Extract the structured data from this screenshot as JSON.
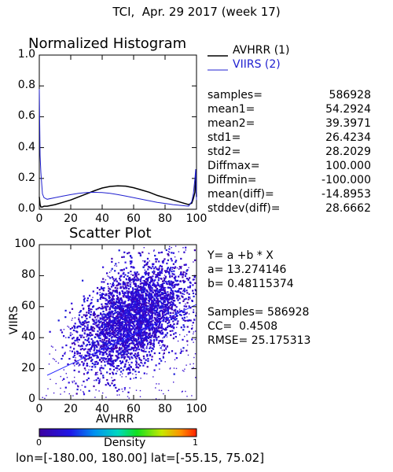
{
  "header": {
    "title": "TCI,  Apr. 29 2017 (week 17)"
  },
  "histogram": {
    "title": "Normalized Histogram",
    "legend": [
      {
        "label": "AVHRR (1)",
        "color": "#000000"
      },
      {
        "label": "VIIRS (2)",
        "color": "#2020d0"
      }
    ]
  },
  "stats": [
    {
      "label": "samples=",
      "value": "586928"
    },
    {
      "label": "mean1=",
      "value": "54.2924"
    },
    {
      "label": "mean2=",
      "value": "39.3971"
    },
    {
      "label": "std1=",
      "value": "26.4234"
    },
    {
      "label": "std2=",
      "value": "28.2029"
    },
    {
      "label": "Diffmax=",
      "value": "100.000"
    },
    {
      "label": "Diffmin=",
      "value": "-100.000"
    },
    {
      "label": "mean(diff)=",
      "value": "-14.8953"
    },
    {
      "label": "stddev(diff)=",
      "value": "28.6662"
    }
  ],
  "scatter": {
    "title": "Scatter Plot",
    "equation": "Y= a +b * X",
    "a_text": "a= 13.274146",
    "b_text": "b= 0.48115374",
    "samples_text": "Samples= 586928",
    "cc_text": "CC=  0.4508",
    "rmse_text": "RMSE= 25.175313"
  },
  "colorbar": {
    "label": "Density",
    "min_label": "0",
    "max_label": "1"
  },
  "footer": {
    "text": "lon=[-180.00, 180.00] lat=[-55.15, 75.02]"
  },
  "chart_data": [
    {
      "type": "line",
      "title": "Normalized Histogram",
      "xlim": [
        0,
        100
      ],
      "ylim": [
        0,
        1
      ],
      "x_ticks": [
        "0",
        "20",
        "40",
        "60",
        "80",
        "100"
      ],
      "y_ticks": [
        "0.0",
        "0.2",
        "0.4",
        "0.6",
        "0.8",
        "1.0"
      ],
      "x": [
        0,
        0.5,
        1,
        2,
        3,
        5,
        10,
        15,
        20,
        25,
        30,
        35,
        40,
        45,
        50,
        55,
        60,
        65,
        70,
        75,
        80,
        85,
        90,
        95,
        97,
        98,
        99,
        99.5,
        100
      ],
      "series": [
        {
          "name": "AVHRR (1)",
          "color": "#000000",
          "values": [
            0.08,
            0.03,
            0.015,
            0.015,
            0.02,
            0.02,
            0.03,
            0.045,
            0.06,
            0.08,
            0.1,
            0.12,
            0.138,
            0.148,
            0.152,
            0.15,
            0.14,
            0.125,
            0.11,
            0.09,
            0.075,
            0.06,
            0.045,
            0.03,
            0.04,
            0.07,
            0.11,
            0.22,
            0.08
          ]
        },
        {
          "name": "VIIRS (2)",
          "color": "#2020d0",
          "values": [
            0.78,
            0.35,
            0.24,
            0.1,
            0.075,
            0.065,
            0.075,
            0.085,
            0.095,
            0.103,
            0.108,
            0.11,
            0.108,
            0.103,
            0.095,
            0.085,
            0.075,
            0.065,
            0.055,
            0.045,
            0.038,
            0.03,
            0.025,
            0.02,
            0.05,
            0.1,
            0.2,
            0.26,
            0.06
          ]
        }
      ]
    },
    {
      "type": "scatter",
      "title": "Scatter Plot",
      "xlabel": "AVHRR",
      "ylabel": "VIIRS",
      "xlim": [
        0,
        100
      ],
      "ylim": [
        0,
        100
      ],
      "x_ticks": [
        "0",
        "20",
        "40",
        "60",
        "80",
        "100"
      ],
      "y_ticks": [
        "0",
        "20",
        "40",
        "60",
        "80",
        "100"
      ],
      "fit_line": {
        "a": 13.274146,
        "b": 0.48115374,
        "color": "#2020ff"
      },
      "samples": 586928,
      "cc": 0.4508,
      "rmse": 25.175313
    }
  ]
}
